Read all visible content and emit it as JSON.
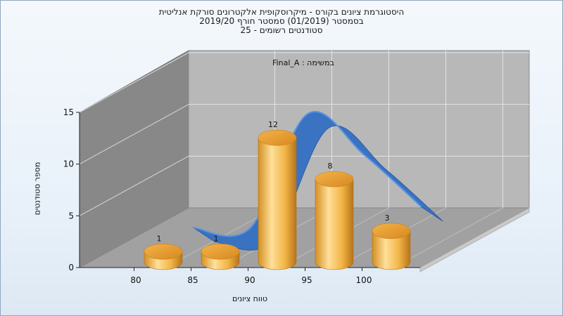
{
  "chart_data": {
    "type": "bar",
    "title_lines": [
      "היסטוגרמת ציונים בקורס - מיקרוסקופית אלקטרונים סורקת אנליטית",
      "בסמסטר  (01/2019)  סמסטר חורף 2019/20",
      "סטודנטים רשומים - 25"
    ],
    "series_label": "במשימה : Final_A",
    "xlabel": "טווח ציונים",
    "ylabel": "מספר סטודנטים",
    "x_ticks": [
      "80",
      "85",
      "90",
      "95",
      "100"
    ],
    "y_ticks": [
      "0",
      "5",
      "10",
      "15"
    ],
    "ylim": [
      0,
      15
    ],
    "categories": [
      80,
      85,
      90,
      95,
      100
    ],
    "values": [
      1,
      1,
      12,
      8,
      3
    ],
    "data_labels": [
      "1",
      "1",
      "12",
      "8",
      "3"
    ],
    "grid": true,
    "colors": {
      "bar_light": "#ffd98a",
      "bar_mid": "#f0b040",
      "bar_dark": "#c07a18",
      "bar_top": "#e49a2a",
      "curve": "#3a79d0",
      "back_wall": "#b9b9b9",
      "side_wall": "#8a8a8a",
      "floor": "#a2a2a2"
    }
  }
}
